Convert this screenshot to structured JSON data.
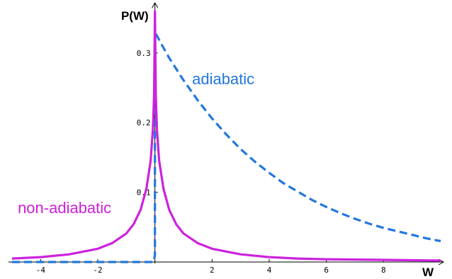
{
  "chart_data": {
    "type": "line",
    "title": "",
    "xlabel": "W",
    "ylabel": "P(W)",
    "xlim": [
      -5.0,
      10.0
    ],
    "ylim": [
      0,
      0.37
    ],
    "grid": false,
    "xticks": [
      {
        "value": -4,
        "label": "-4"
      },
      {
        "value": -2,
        "label": "-2"
      },
      {
        "value": 2,
        "label": "2"
      },
      {
        "value": 4,
        "label": "4"
      },
      {
        "value": 6,
        "label": "6"
      },
      {
        "value": 8,
        "label": "8"
      }
    ],
    "yticks": [
      {
        "value": 0.1,
        "label": "0.1"
      },
      {
        "value": 0.2,
        "label": "0.2"
      },
      {
        "value": 0.3,
        "label": "0.3"
      }
    ],
    "series": [
      {
        "name": "adiabatic",
        "color": "#2277dd",
        "style": "dashed",
        "points": [
          [
            -5.0,
            0
          ],
          [
            -0.15,
            0
          ],
          [
            -0.05,
            0
          ],
          [
            0.0,
            0.01
          ],
          [
            0.0,
            0.33
          ],
          [
            0.25,
            0.311
          ],
          [
            0.5,
            0.293
          ],
          [
            0.75,
            0.277
          ],
          [
            1.0,
            0.261
          ],
          [
            1.5,
            0.232
          ],
          [
            2.0,
            0.206
          ],
          [
            2.5,
            0.183
          ],
          [
            3.0,
            0.162
          ],
          [
            3.5,
            0.144
          ],
          [
            4.0,
            0.128
          ],
          [
            4.5,
            0.113
          ],
          [
            5.0,
            0.101
          ],
          [
            5.5,
            0.089
          ],
          [
            6.0,
            0.079
          ],
          [
            6.5,
            0.07
          ],
          [
            7.0,
            0.062
          ],
          [
            7.5,
            0.055
          ],
          [
            8.0,
            0.049
          ],
          [
            8.5,
            0.044
          ],
          [
            9.0,
            0.039
          ],
          [
            9.5,
            0.034
          ],
          [
            10.0,
            0.03
          ]
        ]
      },
      {
        "name": "non-adiabatic",
        "color": "#cc22dd",
        "style": "solid",
        "points": [
          [
            -5.0,
            0.005
          ],
          [
            -4.0,
            0.007
          ],
          [
            -3.0,
            0.011
          ],
          [
            -2.0,
            0.019
          ],
          [
            -1.5,
            0.027
          ],
          [
            -1.0,
            0.041
          ],
          [
            -0.75,
            0.054
          ],
          [
            -0.5,
            0.075
          ],
          [
            -0.3,
            0.105
          ],
          [
            -0.15,
            0.145
          ],
          [
            -0.07,
            0.19
          ],
          [
            -0.03,
            0.24
          ],
          [
            0.0,
            0.36
          ],
          [
            0.03,
            0.24
          ],
          [
            0.07,
            0.19
          ],
          [
            0.15,
            0.145
          ],
          [
            0.3,
            0.105
          ],
          [
            0.5,
            0.075
          ],
          [
            0.75,
            0.054
          ],
          [
            1.0,
            0.041
          ],
          [
            1.5,
            0.027
          ],
          [
            2.0,
            0.019
          ],
          [
            3.0,
            0.011
          ],
          [
            4.0,
            0.007
          ],
          [
            5.0,
            0.005
          ],
          [
            6.0,
            0.004
          ],
          [
            8.0,
            0.003
          ],
          [
            10.0,
            0.002
          ]
        ]
      }
    ],
    "annotations": [
      {
        "text": "adiabatic",
        "color": "#2277dd",
        "x": 1.3,
        "y": 0.255
      },
      {
        "text": "non-adiabatic",
        "color": "#cc22dd",
        "x": -4.8,
        "y": 0.07
      }
    ]
  }
}
